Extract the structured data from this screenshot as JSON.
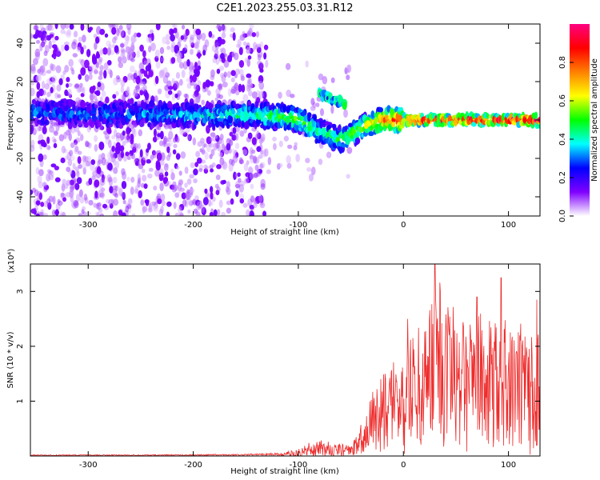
{
  "figure_title": "C2E1.2023.255.03.31.R12",
  "chart_data": [
    {
      "id": "spectrogram",
      "type": "heatmap",
      "title": "C2E1.2023.255.03.31.R12",
      "xlabel": "Height of straight line (km)",
      "ylabel": "Frequency (Hz)",
      "xlim": [
        -355,
        130
      ],
      "ylim": [
        -50,
        50
      ],
      "xticks": [
        -300,
        -200,
        -100,
        0,
        100
      ],
      "xtick_labels": [
        "-300",
        "-200",
        "-100",
        "0",
        "100"
      ],
      "yticks": [
        -40,
        -20,
        0,
        20,
        40
      ],
      "ytick_labels": [
        "-40",
        "-20",
        "0",
        "20",
        "40"
      ],
      "colorbar": {
        "label": "Normalized spectral amplitude",
        "range": [
          0,
          1
        ],
        "ticks": [
          0.0,
          0.2,
          0.4,
          0.6,
          0.8
        ],
        "tick_labels": [
          "0.0",
          "0.2",
          "0.4",
          "0.6",
          "0.8"
        ],
        "colormap": [
          "#ffffff",
          "#8000ff",
          "#0000ff",
          "#00ffff",
          "#00ff00",
          "#ffff00",
          "#ff8000",
          "#ff0000",
          "#ff0080"
        ]
      },
      "ridge": [
        {
          "x": -350,
          "y": 4,
          "amp": 0.3
        },
        {
          "x": -300,
          "y": 3,
          "amp": 0.3
        },
        {
          "x": -250,
          "y": 3,
          "amp": 0.32
        },
        {
          "x": -200,
          "y": 2,
          "amp": 0.35
        },
        {
          "x": -160,
          "y": 3,
          "amp": 0.42
        },
        {
          "x": -130,
          "y": 2,
          "amp": 0.45
        },
        {
          "x": -120,
          "y": 2,
          "amp": 0.5
        },
        {
          "x": -100,
          "y": 0,
          "amp": 0.55
        },
        {
          "x": -90,
          "y": -3,
          "amp": 0.5
        },
        {
          "x": -80,
          "y": -6,
          "amp": 0.45
        },
        {
          "x": -70,
          "y": -8,
          "amp": 0.45
        },
        {
          "x": -60,
          "y": -10,
          "amp": 0.5
        },
        {
          "x": -50,
          "y": -8,
          "amp": 0.5
        },
        {
          "x": -40,
          "y": -4,
          "amp": 0.55
        },
        {
          "x": -30,
          "y": -2,
          "amp": 0.65
        },
        {
          "x": -20,
          "y": 0,
          "amp": 0.75
        },
        {
          "x": 0,
          "y": 0,
          "amp": 0.9
        },
        {
          "x": 130,
          "y": 0,
          "amp": 0.95
        }
      ],
      "noise_xmax": -130,
      "secondary_ridge": [
        {
          "x": -80,
          "y": 14
        },
        {
          "x": -65,
          "y": 10
        },
        {
          "x": -55,
          "y": 8
        }
      ]
    },
    {
      "id": "snr",
      "type": "line",
      "xlabel": "Height of straight line (km)",
      "ylabel": "SNR (10 * v/v)",
      "ylabel_multiplier": "(x10⁴)",
      "xlim": [
        -355,
        130
      ],
      "ylim": [
        0,
        3.5
      ],
      "xticks": [
        -300,
        -200,
        -100,
        0,
        100
      ],
      "xtick_labels": [
        "-300",
        "-200",
        "-100",
        "0",
        "100"
      ],
      "yticks": [
        1,
        2,
        3
      ],
      "ytick_labels": [
        "1",
        "2",
        "3"
      ],
      "line_color": "#ee2b2b",
      "envelope": [
        {
          "x": -355,
          "y": 0.02
        },
        {
          "x": -250,
          "y": 0.02
        },
        {
          "x": -150,
          "y": 0.03
        },
        {
          "x": -120,
          "y": 0.05
        },
        {
          "x": -100,
          "y": 0.12
        },
        {
          "x": -85,
          "y": 0.35
        },
        {
          "x": -70,
          "y": 0.25
        },
        {
          "x": -50,
          "y": 0.2
        },
        {
          "x": -40,
          "y": 0.6
        },
        {
          "x": -30,
          "y": 1.2
        },
        {
          "x": -15,
          "y": 1.6
        },
        {
          "x": 0,
          "y": 2.0
        },
        {
          "x": 20,
          "y": 2.5
        },
        {
          "x": 30,
          "y": 3.4
        },
        {
          "x": 50,
          "y": 2.8
        },
        {
          "x": 80,
          "y": 2.6
        },
        {
          "x": 100,
          "y": 2.5
        },
        {
          "x": 130,
          "y": 2.4
        }
      ],
      "peaks": [
        {
          "x": 30,
          "y": 3.5
        },
        {
          "x": 93,
          "y": 3.25
        },
        {
          "x": 70,
          "y": 2.9
        },
        {
          "x": 4,
          "y": 2.5
        },
        {
          "x": 127,
          "y": 2.85
        }
      ]
    }
  ]
}
